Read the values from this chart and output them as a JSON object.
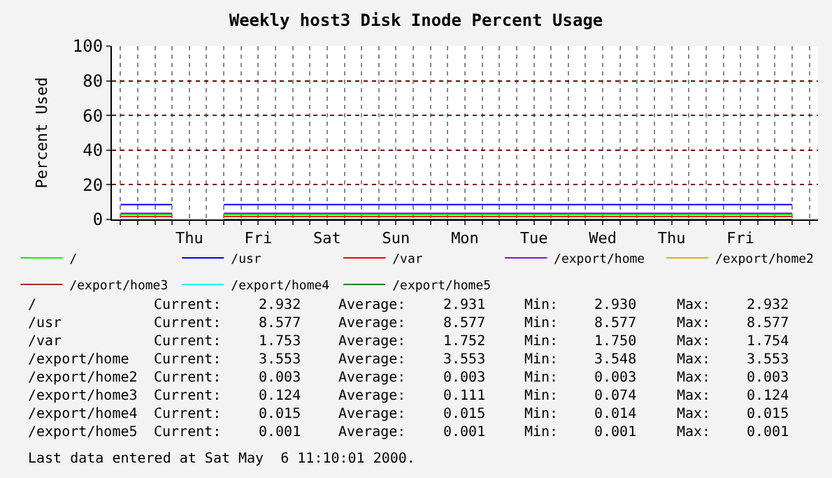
{
  "chart_data": {
    "type": "line",
    "title": "Weekly host3 Disk Inode Percent Usage",
    "ylabel": "Percent Used",
    "categories": [
      null,
      null,
      null,
      null,
      "Thu",
      null,
      null,
      null,
      "Fri",
      null,
      null,
      null,
      "Sat",
      null,
      null,
      null,
      "Sun",
      null,
      null,
      null,
      "Mon",
      null,
      null,
      null,
      "Tue",
      null,
      null,
      null,
      "Wed",
      null,
      null,
      null,
      "Thu",
      null,
      null,
      null,
      "Fri",
      null,
      null,
      null,
      null
    ],
    "series": [
      {
        "name": "/",
        "color": "#00ff00",
        "values": [
          2.931,
          2.931,
          2.931,
          2.931,
          null,
          null,
          2.931,
          2.931,
          2.931,
          2.931,
          2.931,
          2.931,
          2.931,
          2.931,
          2.931,
          2.931,
          2.931,
          2.931,
          2.931,
          2.931,
          2.931,
          2.931,
          2.931,
          2.931,
          2.931,
          2.931,
          2.931,
          2.931,
          2.931,
          2.931,
          2.931,
          2.931,
          2.931,
          2.931,
          2.931,
          2.931,
          2.931,
          2.931,
          2.931,
          2.931,
          null
        ]
      },
      {
        "name": "/usr",
        "color": "#0000ff",
        "values": [
          8.577,
          8.577,
          8.577,
          8.577,
          null,
          null,
          8.577,
          8.577,
          8.577,
          8.577,
          8.577,
          8.577,
          8.577,
          8.577,
          8.577,
          8.577,
          8.577,
          8.577,
          8.577,
          8.577,
          8.577,
          8.577,
          8.577,
          8.577,
          8.577,
          8.577,
          8.577,
          8.577,
          8.577,
          8.577,
          8.577,
          8.577,
          8.577,
          8.577,
          8.577,
          8.577,
          8.577,
          8.577,
          8.577,
          8.577,
          null
        ]
      },
      {
        "name": "/var",
        "color": "#ff0000",
        "values": [
          1.752,
          1.752,
          1.752,
          1.752,
          null,
          null,
          1.752,
          1.752,
          1.752,
          1.752,
          1.752,
          1.752,
          1.752,
          1.752,
          1.752,
          1.752,
          1.752,
          1.752,
          1.752,
          1.752,
          1.752,
          1.752,
          1.752,
          1.752,
          1.752,
          1.752,
          1.752,
          1.752,
          1.752,
          1.752,
          1.752,
          1.752,
          1.752,
          1.752,
          1.752,
          1.752,
          1.752,
          1.752,
          1.752,
          1.752,
          null
        ]
      },
      {
        "name": "/export/home",
        "color": "#9900ff",
        "values": [
          3.553,
          3.553,
          3.553,
          3.553,
          null,
          null,
          3.553,
          3.553,
          3.553,
          3.553,
          3.553,
          3.553,
          3.553,
          3.553,
          3.553,
          3.553,
          3.553,
          3.553,
          3.553,
          3.553,
          3.553,
          3.553,
          3.553,
          3.553,
          3.553,
          3.553,
          3.553,
          3.553,
          3.553,
          3.553,
          3.553,
          3.553,
          3.553,
          3.553,
          3.553,
          3.553,
          3.553,
          3.553,
          3.553,
          3.553,
          null
        ]
      },
      {
        "name": "/export/home2",
        "color": "#ffa500",
        "values": [
          null,
          null,
          null,
          null,
          null,
          null,
          null,
          null,
          null,
          null,
          null,
          null,
          null,
          null,
          null,
          null,
          null,
          null,
          null,
          null,
          null,
          null,
          null,
          null,
          null,
          null,
          null,
          null,
          null,
          null,
          null,
          null,
          null,
          null,
          null,
          null,
          null,
          null,
          null,
          null,
          null
        ]
      },
      {
        "name": "/export/home3",
        "color": "#a52a2a",
        "values": [
          null,
          null,
          null,
          null,
          null,
          null,
          null,
          null,
          null,
          null,
          null,
          null,
          null,
          null,
          null,
          null,
          null,
          null,
          null,
          null,
          null,
          null,
          null,
          null,
          null,
          null,
          null,
          null,
          null,
          null,
          null,
          null,
          null,
          null,
          null,
          null,
          null,
          null,
          null,
          null,
          null
        ]
      },
      {
        "name": "/export/home4",
        "color": "#00ffff",
        "values": [
          0.015,
          0.015,
          0.015,
          0.015,
          null,
          null,
          null,
          null,
          null,
          null,
          null,
          null,
          null,
          null,
          null,
          null,
          null,
          null,
          null,
          null,
          null,
          null,
          null,
          null,
          null,
          null,
          null,
          null,
          null,
          null,
          null,
          null,
          null,
          null,
          null,
          null,
          null,
          null,
          null,
          null,
          null
        ]
      },
      {
        "name": "/export/home5",
        "color": "#008000",
        "values": [
          null,
          null,
          null,
          null,
          null,
          null,
          0.001,
          0.001,
          0.001,
          0.001,
          0.001,
          0.001,
          0.001,
          0.001,
          0.001,
          0.001,
          0.001,
          0.001,
          0.001,
          0.001,
          0.001,
          0.001,
          0.001,
          0.001,
          0.001,
          0.001,
          0.001,
          0.001,
          0.001,
          0.001,
          0.001,
          0.001,
          0.001,
          0.001,
          0.001,
          0.001,
          0.001,
          0.001,
          0.001,
          0.001,
          null
        ]
      }
    ],
    "ylim": [
      0,
      100
    ],
    "yticks": [
      0,
      20,
      40,
      60,
      80,
      100
    ],
    "grid": true,
    "legend": "bottom",
    "marker": "none",
    "line_style": "solid",
    "annotations": [
      "/",
      "Current:",
      "2.932",
      "Average:",
      "2.931",
      "Min:",
      "2.930",
      "Max:",
      "2.932",
      "/usr",
      "Current:",
      "8.577",
      "Average:",
      "8.577",
      "Min:",
      "8.577",
      "Max:",
      "8.577",
      "/var",
      "Current:",
      "1.753",
      "Average:",
      "1.752",
      "Min:",
      "1.750",
      "Max:",
      "1.754",
      "/export/home",
      "Current:",
      "3.553",
      "Average:",
      "3.553",
      "Min:",
      "3.548",
      "Max:",
      "3.553",
      "/export/home2",
      "Current:",
      "0.003",
      "Average:",
      "0.003",
      "Min:",
      "0.003",
      "Max:",
      "0.003",
      "/export/home3",
      "Current:",
      "0.124",
      "Average:",
      "0.111",
      "Min:",
      "0.074",
      "Max:",
      "0.124",
      "/export/home4",
      "Current:",
      "0.015",
      "Average:",
      "0.015",
      "Min:",
      "0.014",
      "Max:",
      "0.015",
      "/export/home5",
      "Current:",
      "0.001",
      "Average:",
      "0.001",
      "Min:",
      "0.001",
      "Max:",
      "0.001",
      "Last data entered at Sat May  6 11:10:01 2000."
    ]
  }
}
